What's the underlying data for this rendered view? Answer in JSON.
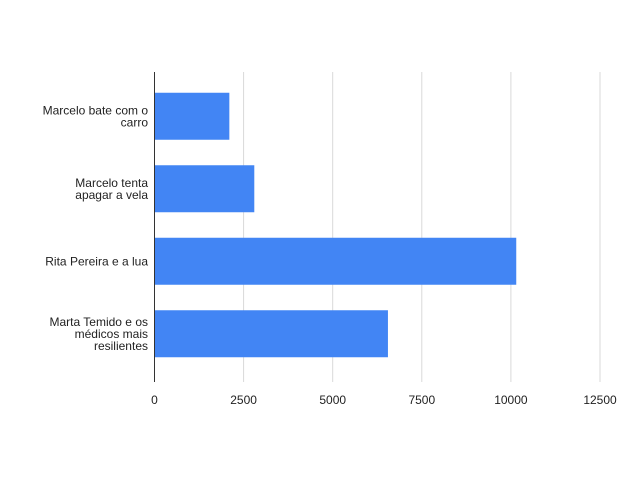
{
  "chart_data": {
    "type": "bar",
    "orientation": "horizontal",
    "title": "",
    "xlabel": "",
    "ylabel": "",
    "categories": [
      "Marcelo bate com o carro",
      "Marcelo tenta apagar a vela",
      "Rita Pereira e a lua",
      "Marta Temido e os médicos mais resilientes"
    ],
    "category_label_lines": [
      [
        "Marcelo bate com o",
        "carro"
      ],
      [
        "Marcelo tenta",
        "apagar a vela"
      ],
      [
        "Rita Pereira e a lua"
      ],
      [
        "Marta Temido e os",
        "médicos mais",
        "resilientes"
      ]
    ],
    "values": [
      2100,
      2800,
      10150,
      6550
    ],
    "xlim": [
      0,
      12500
    ],
    "x_ticks": [
      0,
      2500,
      5000,
      7500,
      10000,
      12500
    ],
    "x_tick_labels": [
      "0",
      "2500",
      "5000",
      "7500",
      "10000",
      "12500"
    ],
    "grid": "vertical",
    "legend": "none",
    "colors": {
      "bar": "#4285f4",
      "grid": "#d9d9d9",
      "axis": "#333333",
      "text": "#222222"
    }
  }
}
